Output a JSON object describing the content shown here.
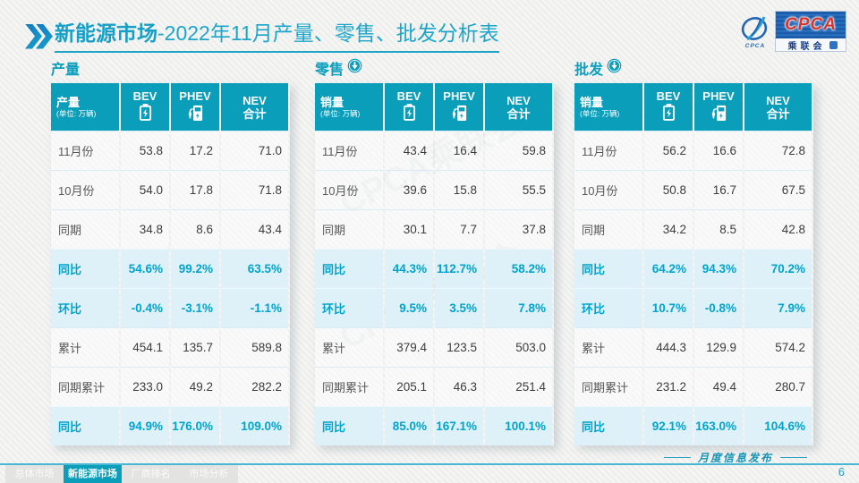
{
  "page": {
    "title_bold": "新能源市场",
    "title_rest": "-2022年11月产量、零售、批发分析表",
    "footer_note": "月度信息发布",
    "page_number": "6"
  },
  "logo": {
    "acronym": "CPCA",
    "cn_name": "乘联会",
    "emblem_caption": "CPCA",
    "watermark": "CPCA乘联会"
  },
  "footer_tabs": [
    {
      "label": "总体市场",
      "active": false
    },
    {
      "label": "新能源市场",
      "active": true
    },
    {
      "label": "厂商排名",
      "active": false
    },
    {
      "label": "市场分析",
      "active": false
    }
  ],
  "colors": {
    "accent_teal": "#0a9eba",
    "highlight_bg": "#def1f9",
    "highlight_text": "#00a4cd",
    "title_cyan": "#189fc6",
    "logo_blue": "#1b5cab",
    "logo_red": "#d6342c"
  },
  "chart_data": [
    {
      "type": "table",
      "title": "产量",
      "has_arrow_icon": false,
      "corner_label": "产量",
      "unit": "(单位: 万辆)",
      "columns": [
        "BEV",
        "PHEV",
        "NEV合计"
      ],
      "row_labels": [
        "11月份",
        "10月份",
        "同期",
        "同比",
        "环比",
        "累计",
        "同期累计",
        "同比"
      ],
      "highlight_rows": [
        3,
        4,
        7
      ],
      "rows": [
        [
          "53.8",
          "17.2",
          "71.0"
        ],
        [
          "54.0",
          "17.8",
          "71.8"
        ],
        [
          "34.8",
          "8.6",
          "43.4"
        ],
        [
          "54.6%",
          "99.2%",
          "63.5%"
        ],
        [
          "-0.4%",
          "-3.1%",
          "-1.1%"
        ],
        [
          "454.1",
          "135.7",
          "589.8"
        ],
        [
          "233.0",
          "49.2",
          "282.2"
        ],
        [
          "94.9%",
          "176.0%",
          "109.0%"
        ]
      ]
    },
    {
      "type": "table",
      "title": "零售",
      "has_arrow_icon": true,
      "corner_label": "销量",
      "unit": "(单位: 万辆)",
      "columns": [
        "BEV",
        "PHEV",
        "NEV合计"
      ],
      "row_labels": [
        "11月份",
        "10月份",
        "同期",
        "同比",
        "环比",
        "累计",
        "同期累计",
        "同比"
      ],
      "highlight_rows": [
        3,
        4,
        7
      ],
      "rows": [
        [
          "43.4",
          "16.4",
          "59.8"
        ],
        [
          "39.6",
          "15.8",
          "55.5"
        ],
        [
          "30.1",
          "7.7",
          "37.8"
        ],
        [
          "44.3%",
          "112.7%",
          "58.2%"
        ],
        [
          "9.5%",
          "3.5%",
          "7.8%"
        ],
        [
          "379.4",
          "123.5",
          "503.0"
        ],
        [
          "205.1",
          "46.3",
          "251.4"
        ],
        [
          "85.0%",
          "167.1%",
          "100.1%"
        ]
      ]
    },
    {
      "type": "table",
      "title": "批发",
      "has_arrow_icon": true,
      "corner_label": "销量",
      "unit": "(单位: 万辆)",
      "columns": [
        "BEV",
        "PHEV",
        "NEV合计"
      ],
      "row_labels": [
        "11月份",
        "10月份",
        "同期",
        "同比",
        "环比",
        "累计",
        "同期累计",
        "同比"
      ],
      "highlight_rows": [
        3,
        4,
        7
      ],
      "rows": [
        [
          "56.2",
          "16.6",
          "72.8"
        ],
        [
          "50.8",
          "16.7",
          "67.5"
        ],
        [
          "34.2",
          "8.5",
          "42.8"
        ],
        [
          "64.2%",
          "94.3%",
          "70.2%"
        ],
        [
          "10.7%",
          "-0.8%",
          "7.9%"
        ],
        [
          "444.3",
          "129.9",
          "574.2"
        ],
        [
          "231.2",
          "49.4",
          "280.7"
        ],
        [
          "92.1%",
          "163.0%",
          "104.6%"
        ]
      ]
    }
  ]
}
